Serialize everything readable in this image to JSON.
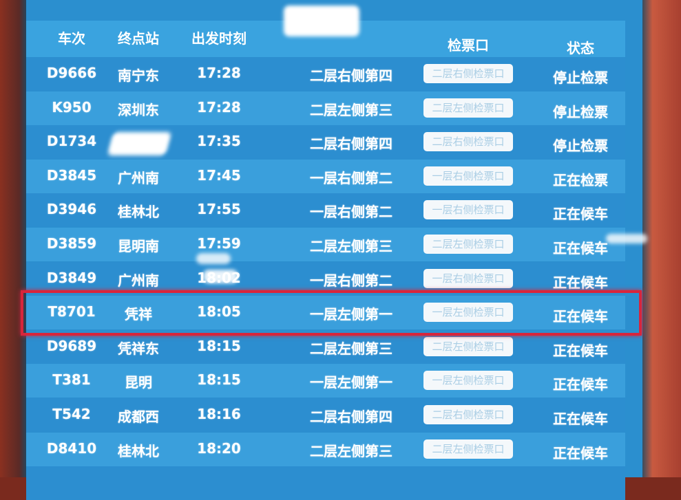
{
  "header": {
    "train": "车次",
    "destination": "终点站",
    "departure": "出发时刻",
    "waiting_area": "",
    "gate": "检票口",
    "status": "状态"
  },
  "rows": [
    {
      "train": "D9666",
      "destination": "南宁东",
      "time": "17:28",
      "waiting_area": "二层右侧第四",
      "gate": "二层右侧检票口",
      "status": "停止检票"
    },
    {
      "train": "K950",
      "destination": "深圳东",
      "time": "17:28",
      "waiting_area": "二层左侧第三",
      "gate": "二层左侧检票口",
      "status": "停止检票"
    },
    {
      "train": "D1734",
      "destination": "",
      "time": "17:35",
      "waiting_area": "二层右侧第四",
      "gate": "二层右侧检票口",
      "status": "停止检票"
    },
    {
      "train": "D3845",
      "destination": "广州南",
      "time": "17:45",
      "waiting_area": "一层右侧第二",
      "gate": "一层右侧检票口",
      "status": "正在检票"
    },
    {
      "train": "D3946",
      "destination": "桂林北",
      "time": "17:55",
      "waiting_area": "一层右侧第二",
      "gate": "一层右侧检票口",
      "status": "正在候车"
    },
    {
      "train": "D3859",
      "destination": "昆明南",
      "time": "17:59",
      "waiting_area": "二层左侧第三",
      "gate": "二层左侧检票口",
      "status": "正在候车"
    },
    {
      "train": "D3849",
      "destination": "广州南",
      "time": "18:02",
      "waiting_area": "一层右侧第二",
      "gate": "一层右侧检票口",
      "status": "正在候车"
    },
    {
      "train": "T8701",
      "destination": "凭祥",
      "time": "18:05",
      "waiting_area": "一层左侧第一",
      "gate": "一层左侧检票口",
      "status": "正在候车"
    },
    {
      "train": "D9689",
      "destination": "凭祥东",
      "time": "18:15",
      "waiting_area": "二层左侧第三",
      "gate": "二层左侧检票口",
      "status": "正在候车"
    },
    {
      "train": "T381",
      "destination": "昆明",
      "time": "18:15",
      "waiting_area": "一层左侧第一",
      "gate": "一层左侧检票口",
      "status": "正在候车"
    },
    {
      "train": "T542",
      "destination": "成都西",
      "time": "18:16",
      "waiting_area": "二层右侧第四",
      "gate": "二层右侧检票口",
      "status": "正在候车"
    },
    {
      "train": "D8410",
      "destination": "桂林北",
      "time": "18:20",
      "waiting_area": "二层左侧第三",
      "gate": "二层左侧检票口",
      "status": "正在候车"
    }
  ],
  "highlighted_train": "T8701",
  "colors": {
    "board": "#2b8fcf",
    "highlight": "#d8253c",
    "gate_text": "#a9cde4"
  }
}
